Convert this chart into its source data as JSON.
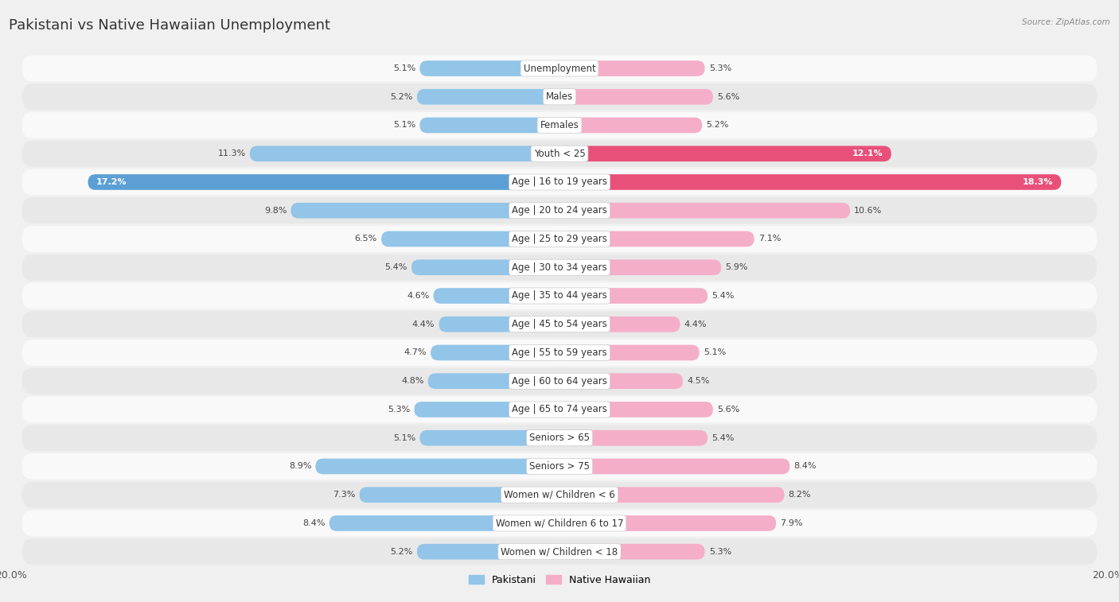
{
  "title": "Pakistani vs Native Hawaiian Unemployment",
  "source": "Source: ZipAtlas.com",
  "categories": [
    "Unemployment",
    "Males",
    "Females",
    "Youth < 25",
    "Age | 16 to 19 years",
    "Age | 20 to 24 years",
    "Age | 25 to 29 years",
    "Age | 30 to 34 years",
    "Age | 35 to 44 years",
    "Age | 45 to 54 years",
    "Age | 55 to 59 years",
    "Age | 60 to 64 years",
    "Age | 65 to 74 years",
    "Seniors > 65",
    "Seniors > 75",
    "Women w/ Children < 6",
    "Women w/ Children 6 to 17",
    "Women w/ Children < 18"
  ],
  "pakistani": [
    5.1,
    5.2,
    5.1,
    11.3,
    17.2,
    9.8,
    6.5,
    5.4,
    4.6,
    4.4,
    4.7,
    4.8,
    5.3,
    5.1,
    8.9,
    7.3,
    8.4,
    5.2
  ],
  "native_hawaiian": [
    5.3,
    5.6,
    5.2,
    12.1,
    18.3,
    10.6,
    7.1,
    5.9,
    5.4,
    4.4,
    5.1,
    4.5,
    5.6,
    5.4,
    8.4,
    8.2,
    7.9,
    5.3
  ],
  "pakistani_color": "#92c5e8",
  "native_hawaiian_color": "#f5aec8",
  "highlight_pakistani": [
    false,
    false,
    false,
    false,
    true,
    false,
    false,
    false,
    false,
    false,
    false,
    false,
    false,
    false,
    false,
    false,
    false,
    false
  ],
  "highlight_native_hawaiian": [
    false,
    false,
    false,
    true,
    true,
    false,
    false,
    false,
    false,
    false,
    false,
    false,
    false,
    false,
    false,
    false,
    false,
    false
  ],
  "pakistani_highlight_color": "#5b9fd4",
  "native_hawaiian_highlight_color": "#e8507a",
  "xlim": 20.0,
  "background_color": "#f0f0f0",
  "row_bg_light": "#f9f9f9",
  "row_bg_dark": "#e8e8e8",
  "bar_height": 0.55,
  "title_fontsize": 13,
  "label_fontsize": 8.5,
  "value_fontsize": 8.0
}
